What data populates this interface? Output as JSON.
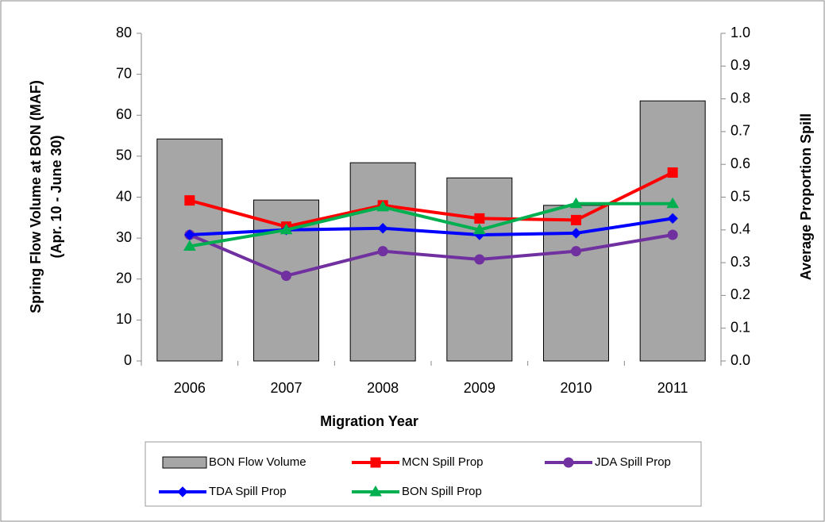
{
  "chart_data": {
    "type": "bar-line",
    "categories": [
      "2006",
      "2007",
      "2008",
      "2009",
      "2010",
      "2011"
    ],
    "series": [
      {
        "name": "BON Flow Volume",
        "type": "bar",
        "color": "#a6a6a6",
        "values": [
          54.2,
          39.3,
          48.4,
          44.7,
          38,
          63.5
        ]
      },
      {
        "name": "MCN Spill Prop",
        "type": "line",
        "axis": "y2",
        "marker": "square",
        "color": "#ff0000",
        "values": [
          0.49,
          0.41,
          0.475,
          0.435,
          0.43,
          0.575
        ]
      },
      {
        "name": "JDA Spill Prop",
        "type": "line",
        "axis": "y2",
        "marker": "circle",
        "color": "#7030a0",
        "values": [
          0.385,
          0.26,
          0.335,
          0.31,
          0.335,
          0.385
        ]
      },
      {
        "name": "TDA Spill Prop",
        "type": "line",
        "axis": "y2",
        "marker": "diamond",
        "color": "#0000ff",
        "values": [
          0.385,
          0.4,
          0.405,
          0.385,
          0.39,
          0.435
        ]
      },
      {
        "name": "BON Spill Prop",
        "type": "line",
        "axis": "y2",
        "marker": "triangle",
        "color": "#00b050",
        "values": [
          0.35,
          0.4,
          0.47,
          0.4,
          0.48,
          0.48
        ]
      }
    ],
    "xlabel": "Migration Year",
    "ylabel": [
      "Spring Flow Volume at BON (MAF)",
      "(Apr. 10 - June 30)"
    ],
    "y2label": "Average Proportion Spill",
    "ylim": [
      0,
      80
    ],
    "yticks": [
      0,
      10,
      20,
      30,
      40,
      50,
      60,
      70,
      80
    ],
    "y2lim": [
      0,
      1
    ],
    "y2ticks": [
      {
        "value": 0,
        "label": "0.0"
      },
      0.1,
      0.2,
      0.3,
      0.4,
      0.5,
      0.6,
      0.7,
      0.8,
      0.9,
      {
        "value": 1,
        "label": "1.0"
      }
    ],
    "legend": "bottom"
  }
}
